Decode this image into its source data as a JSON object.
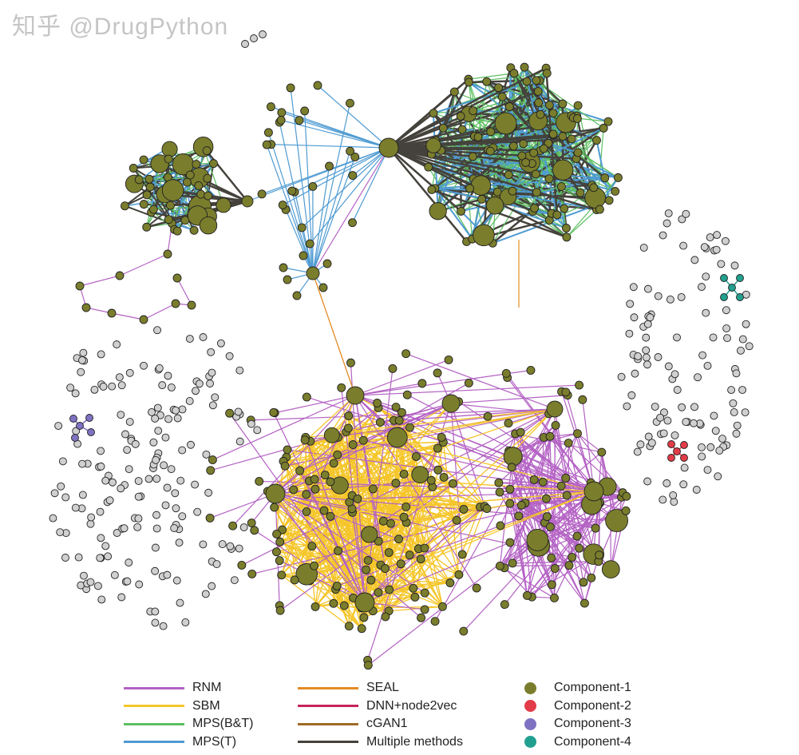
{
  "legend": {
    "methods": [
      {
        "label": "RNM",
        "color": "#b462c4"
      },
      {
        "label": "SBM",
        "color": "#f5c62a"
      },
      {
        "label": "MPS(B&T)",
        "color": "#5dbf62"
      },
      {
        "label": "MPS(T)",
        "color": "#4f9bd2"
      },
      {
        "label": "SEAL",
        "color": "#e38b25"
      },
      {
        "label": "DNN+node2vec",
        "color": "#c8245a"
      },
      {
        "label": "cGAN1",
        "color": "#a06b25"
      },
      {
        "label": "Multiple methods",
        "color": "#45423c"
      }
    ],
    "components": [
      {
        "label": "Component-1",
        "color": "#7a7d2c"
      },
      {
        "label": "Component-2",
        "color": "#e23c48"
      },
      {
        "label": "Component-3",
        "color": "#7f72c2"
      },
      {
        "label": "Component-4",
        "color": "#22a08f"
      }
    ]
  },
  "isolated_node_color": "#d0d0d0",
  "watermark": "知乎 @DrugPython"
}
